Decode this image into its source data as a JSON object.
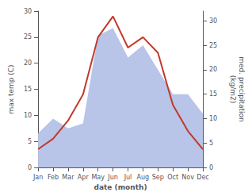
{
  "chart_data": {
    "type": "line",
    "categories": [
      "Jan",
      "Feb",
      "Mar",
      "Apr",
      "May",
      "Jun",
      "Jul",
      "Aug",
      "Sep",
      "Oct",
      "Nov",
      "Dec"
    ],
    "xlabel": "date (month)",
    "ylabel": "max temp (C)",
    "y2label": "med. precipitation\n(kg/m2)",
    "ylim": [
      0,
      30
    ],
    "yticks": [
      0,
      5,
      10,
      15,
      20,
      25,
      30
    ],
    "y2lim": [
      0,
      32
    ],
    "y2ticks": [
      0,
      5,
      10,
      15,
      20,
      25,
      30
    ],
    "grid": false,
    "series": [
      {
        "type": "area",
        "axis": "y2",
        "color": "#b8c4e8",
        "values": [
          7.0,
          10.0,
          8.0,
          9.0,
          27.0,
          28.5,
          22.5,
          25.0,
          20.0,
          15.0,
          15.0,
          11.0
        ]
      },
      {
        "type": "line",
        "color": "#c0392b",
        "values": [
          3.5,
          5.5,
          9.0,
          14.0,
          25.0,
          29.0,
          23.0,
          25.0,
          22.0,
          12.0,
          7.0,
          3.5
        ]
      }
    ]
  }
}
